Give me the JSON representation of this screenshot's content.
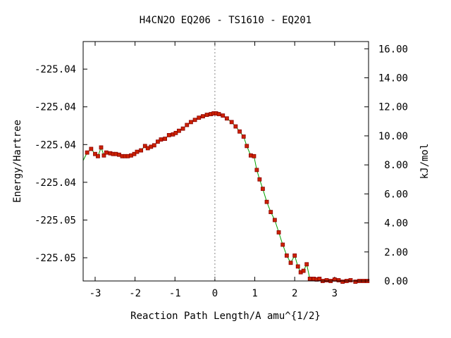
{
  "chart_data": {
    "type": "line",
    "title": "H4CN2O   EQ206 - TS1610 - EQ201",
    "xlabel": "Reaction Path Length/A amu^{1/2}",
    "ylabel_left": "Energy/Hartree",
    "ylabel_right": "kJ/mol",
    "xlim": [
      -3.3,
      3.85
    ],
    "ylim_kjmol": [
      0.0,
      16.5
    ],
    "x_ticks": [
      -3,
      -2,
      -1,
      0,
      1,
      2,
      3
    ],
    "x_tick_labels": [
      "-3",
      "-2",
      "-1",
      "0",
      "1",
      "2",
      "3"
    ],
    "y_left_ticks_kjmol": [
      1.6,
      4.2,
      6.8,
      9.4,
      12.0,
      14.6
    ],
    "y_left_tick_labels": [
      "-225.05",
      "-225.05",
      "-225.04",
      "-225.04",
      "-225.04",
      "-225.04"
    ],
    "y_right_ticks": [
      0,
      2,
      4,
      6,
      8,
      10,
      12,
      14,
      16
    ],
    "y_right_tick_labels": [
      "0.00",
      "2.00",
      "4.00",
      "6.00",
      "8.00",
      "10.00",
      "12.00",
      "14.00",
      "16.00"
    ],
    "ts_marker_x": 0,
    "grid": false,
    "colors": {
      "line": "#00a000",
      "marker": "#cc2200",
      "marker_edge": "#8b0000",
      "ts_line": "#888888"
    },
    "series": [
      {
        "x": [
          -3.3,
          -3.2,
          -3.1,
          -3.0,
          -2.93,
          -2.85,
          -2.78,
          -2.72,
          -2.62,
          -2.55,
          -2.48,
          -2.4,
          -2.32,
          -2.25,
          -2.18,
          -2.1,
          -2.02,
          -1.95,
          -1.85,
          -1.75,
          -1.68,
          -1.6,
          -1.52,
          -1.43,
          -1.35,
          -1.25,
          -1.15,
          -1.05,
          -0.98,
          -0.9,
          -0.8,
          -0.7,
          -0.6,
          -0.5,
          -0.4,
          -0.3,
          -0.2,
          -0.1,
          -0.03,
          0.03,
          0.1,
          0.2,
          0.3,
          0.42,
          0.52,
          0.62,
          0.72,
          0.8,
          0.9,
          0.98,
          1.05,
          1.12,
          1.2,
          1.3,
          1.4,
          1.5,
          1.6,
          1.7,
          1.8,
          1.9,
          2.0,
          2.08,
          2.15,
          2.22,
          2.3,
          2.38,
          2.48,
          2.55,
          2.62,
          2.7,
          2.8,
          2.9,
          3.0,
          3.1,
          3.2,
          3.3,
          3.4,
          3.52,
          3.62,
          3.72,
          3.82
        ],
        "y": [
          8.3,
          8.85,
          9.1,
          8.75,
          8.6,
          9.2,
          8.65,
          8.85,
          8.8,
          8.75,
          8.75,
          8.7,
          8.6,
          8.6,
          8.6,
          8.65,
          8.75,
          8.9,
          9.0,
          9.3,
          9.15,
          9.25,
          9.35,
          9.6,
          9.75,
          9.8,
          10.05,
          10.1,
          10.2,
          10.35,
          10.5,
          10.75,
          10.95,
          11.1,
          11.25,
          11.35,
          11.45,
          11.5,
          11.55,
          11.55,
          11.5,
          11.4,
          11.2,
          10.95,
          10.65,
          10.3,
          9.95,
          9.3,
          8.65,
          8.6,
          7.65,
          7.0,
          6.35,
          5.45,
          4.75,
          4.2,
          3.35,
          2.5,
          1.75,
          1.25,
          1.75,
          1.0,
          0.6,
          0.7,
          1.15,
          0.15,
          0.15,
          0.1,
          0.15,
          0.0,
          0.05,
          0.0,
          0.1,
          0.05,
          -0.05,
          0.0,
          0.05,
          -0.05,
          0.0,
          0.0,
          0.0
        ]
      }
    ]
  }
}
